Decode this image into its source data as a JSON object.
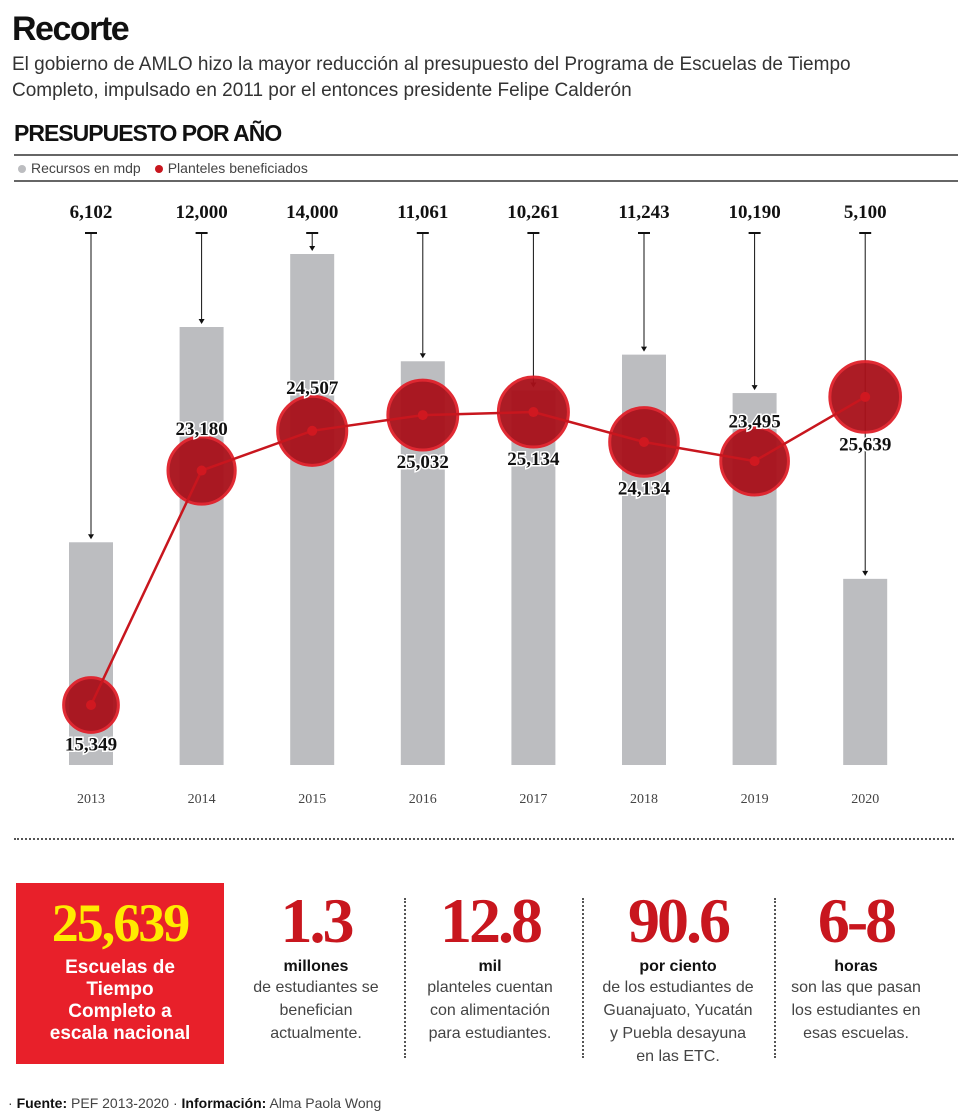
{
  "title": "Recorte",
  "subtitle": "El gobierno de AMLO hizo la mayor reducción al presupuesto del Programa de Escuelas de Tiempo Completo, impulsado en 2011 por el entonces presidente Felipe Calderón",
  "section": "PRESUPUESTO POR AÑO",
  "chart_data": {
    "type": "bar+line",
    "title": "PRESUPUESTO POR AÑO",
    "categories": [
      "2013",
      "2014",
      "2015",
      "2016",
      "2017",
      "2018",
      "2019",
      "2020"
    ],
    "legend": [
      "Recursos en mdp",
      "Planteles beneficiados"
    ],
    "series": [
      {
        "name": "Recursos en mdp",
        "type": "bar",
        "color": "#bcbdc0",
        "values": [
          6102,
          12000,
          14000,
          11061,
          10261,
          11243,
          10190,
          5100
        ],
        "labels": [
          "6,102",
          "12,000",
          "14,000",
          "11,061",
          "10,261",
          "11,243",
          "10,190",
          "5,100"
        ]
      },
      {
        "name": "Planteles beneficiados",
        "type": "line",
        "color": "#c8161e",
        "values": [
          15349,
          23180,
          24507,
          25032,
          25134,
          24134,
          23495,
          25639
        ],
        "labels": [
          "15,349",
          "23,180",
          "24,507",
          "25,032",
          "25,134",
          "24,134",
          "23,495",
          "25,639"
        ]
      }
    ]
  },
  "highlight": {
    "number": "25,639",
    "text": "Escuelas de Tiempo Completo a escala nacional"
  },
  "stats": [
    {
      "number": "1.3",
      "unit": "millones",
      "desc": "de estudiantes se benefician actualmente."
    },
    {
      "number": "12.8",
      "unit": "mil",
      "desc": "planteles cuentan con alimentación para estudiantes."
    },
    {
      "number": "90.6",
      "unit": "por ciento",
      "desc": "de los estudiantes de Guanajuato, Yucatán y Puebla desayuna en las ETC."
    },
    {
      "number": "6-8",
      "unit": "horas",
      "desc": "son las que pasan los estudiantes en esas escuelas."
    }
  ],
  "footer": {
    "source_label": "Fuente:",
    "source": "PEF 2013-2020",
    "info_label": "Información:",
    "info": "Alma Paola Wong"
  }
}
